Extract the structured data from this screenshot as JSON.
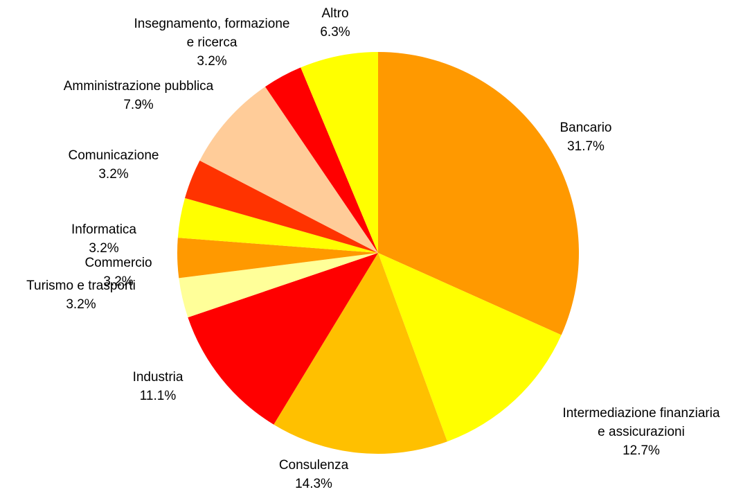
{
  "chart_data": {
    "type": "pie",
    "categories": [
      "Bancario",
      "Intermediazione finanziaria\ne assicurazioni",
      "Consulenza",
      "Industria",
      "Turismo e trasporti",
      "Commercio",
      "Informatica",
      "Comunicazione",
      "Amministrazione pubblica",
      "Insegnamento, formazione\ne ricerca",
      "Altro"
    ],
    "values": [
      31.7,
      12.7,
      14.3,
      11.1,
      3.2,
      3.2,
      3.2,
      3.2,
      7.9,
      3.2,
      6.3
    ],
    "value_labels": [
      "31.7%",
      "12.7%",
      "14.3%",
      "11.1%",
      "3.2%",
      "3.2%",
      "3.2%",
      "3.2%",
      "7.9%",
      "3.2%",
      "6.3%"
    ],
    "colors": [
      "#ff9900",
      "#ffff00",
      "#ffc000",
      "#ff0000",
      "#ffff99",
      "#ff9900",
      "#ffff00",
      "#ff3300",
      "#ffcc99",
      "#ff0000",
      "#ffff00"
    ]
  }
}
